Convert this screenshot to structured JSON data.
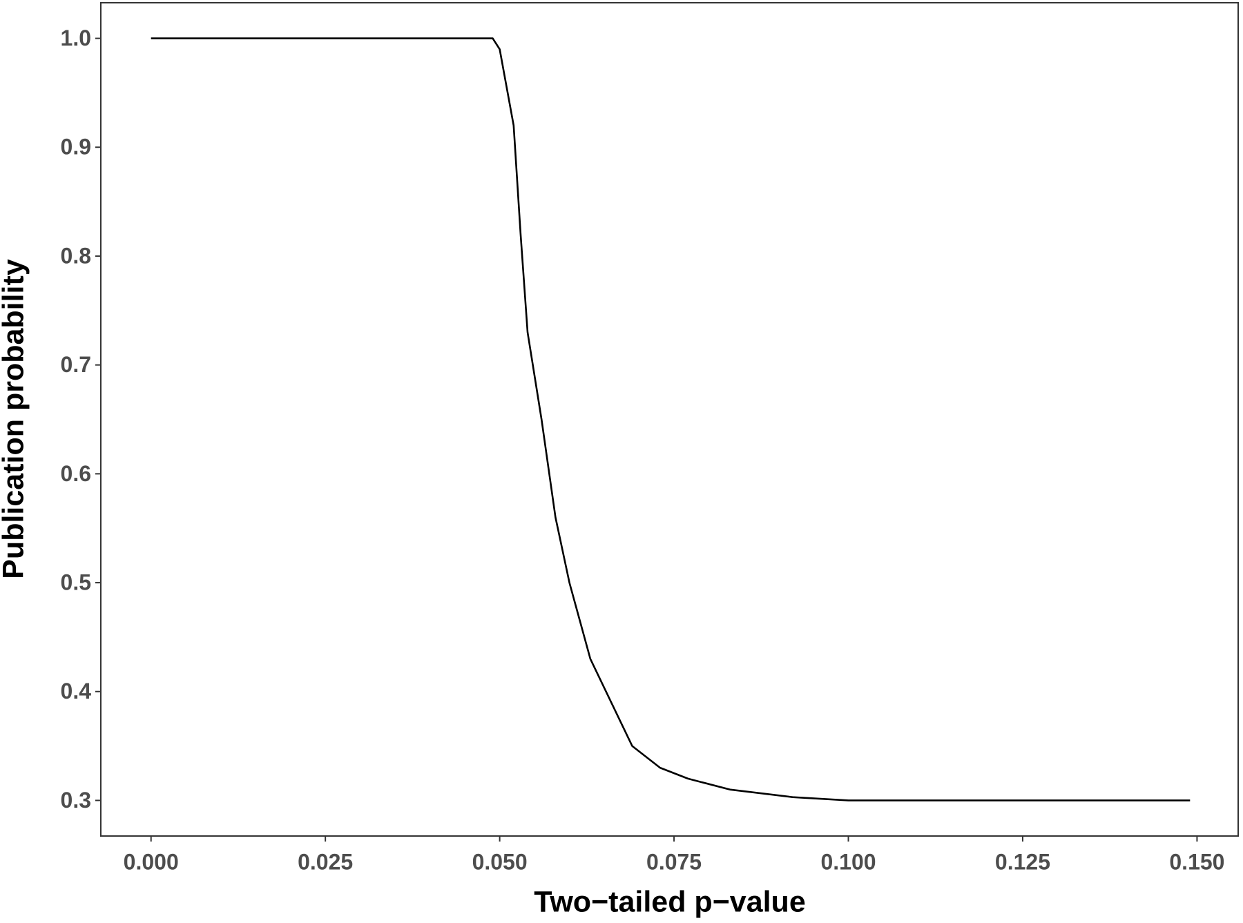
{
  "chart_data": {
    "type": "line",
    "xlabel": "Two−tailed p−value",
    "ylabel": "Publication probability",
    "x": [
      0,
      0.049,
      0.05,
      0.052,
      0.053,
      0.054,
      0.056,
      0.058,
      0.06,
      0.063,
      0.066,
      0.069,
      0.073,
      0.077,
      0.083,
      0.092,
      0.1,
      0.149
    ],
    "values": [
      1,
      1,
      0.99,
      0.92,
      0.82,
      0.73,
      0.65,
      0.56,
      0.5,
      0.43,
      0.39,
      0.35,
      0.33,
      0.32,
      0.31,
      0.303,
      0.3,
      0.3
    ],
    "color": "#000000",
    "xlim": [
      -0.0072,
      0.1559
    ],
    "ylim": [
      0.2673,
      1.0327
    ],
    "xticks": [
      {
        "value": 0,
        "label": "0.000"
      },
      {
        "value": 0.025,
        "label": "0.025"
      },
      {
        "value": 0.05,
        "label": "0.050"
      },
      {
        "value": 0.075,
        "label": "0.075"
      },
      {
        "value": 0.1,
        "label": "0.100"
      },
      {
        "value": 0.125,
        "label": "0.125"
      },
      {
        "value": 0.15,
        "label": "0.150"
      }
    ],
    "yticks": [
      0.3,
      0.4,
      0.5,
      0.6,
      0.7,
      0.8,
      0.9,
      {
        "value": 1,
        "label": "1.0"
      }
    ],
    "grid": false
  }
}
